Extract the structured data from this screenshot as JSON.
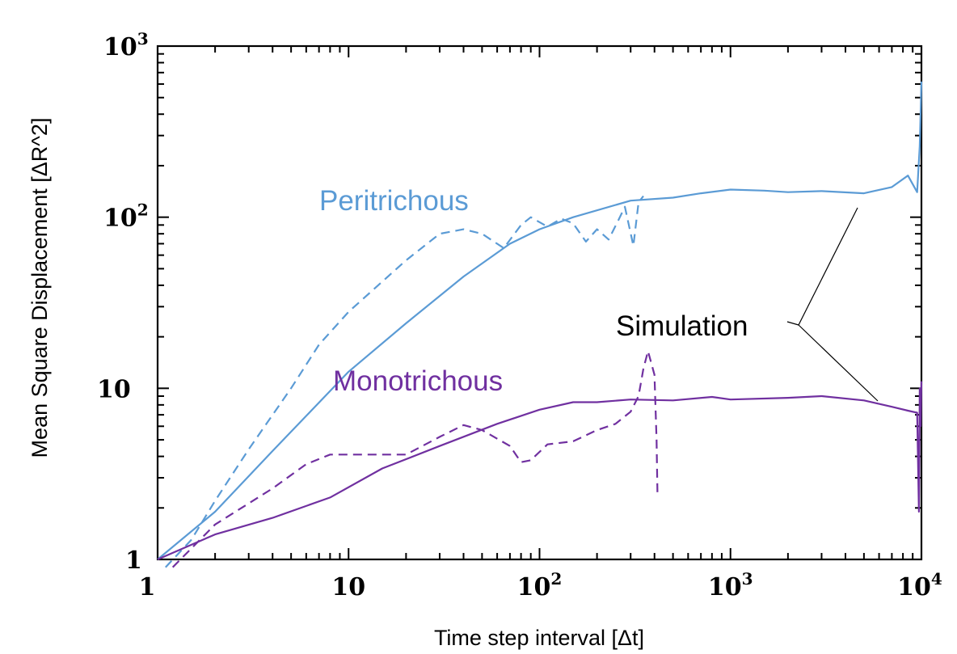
{
  "chart_data": {
    "type": "line",
    "xscale": "log",
    "yscale": "log",
    "xlim": [
      1,
      10000
    ],
    "ylim": [
      1,
      1000
    ],
    "xlabel": "Time step interval [Δt]",
    "ylabel": "Mean  Square  Displacement  [ΔR^2]",
    "grid": false,
    "x_ticks": [
      {
        "value": 1,
        "base": "1",
        "exp": ""
      },
      {
        "value": 10,
        "base": "10",
        "exp": ""
      },
      {
        "value": 100,
        "base": "10",
        "exp": "2"
      },
      {
        "value": 1000,
        "base": "10",
        "exp": "3"
      },
      {
        "value": 10000,
        "base": "10",
        "exp": "4"
      }
    ],
    "y_ticks": [
      {
        "value": 1,
        "base": "1",
        "exp": ""
      },
      {
        "value": 10,
        "base": "10",
        "exp": ""
      },
      {
        "value": 100,
        "base": "10",
        "exp": "2"
      },
      {
        "value": 1000,
        "base": "10",
        "exp": "3"
      }
    ],
    "series": [
      {
        "name": "Peritrichous",
        "color": "#5b9bd5",
        "style": "solid",
        "points": [
          [
            1,
            1
          ],
          [
            2,
            1.9
          ],
          [
            4,
            4.3
          ],
          [
            10,
            12.5
          ],
          [
            20,
            24
          ],
          [
            40,
            45
          ],
          [
            70,
            70
          ],
          [
            100,
            85
          ],
          [
            150,
            100
          ],
          [
            300,
            125
          ],
          [
            500,
            130
          ],
          [
            700,
            138
          ],
          [
            1000,
            145
          ],
          [
            1500,
            143
          ],
          [
            2000,
            140
          ],
          [
            3000,
            142
          ],
          [
            5000,
            138
          ],
          [
            7000,
            150
          ],
          [
            8500,
            175
          ],
          [
            9500,
            140
          ],
          [
            9800,
            260
          ],
          [
            10000,
            620
          ]
        ]
      },
      {
        "name": "Peritrichous",
        "color": "#5b9bd5",
        "style": "dashed",
        "points": [
          [
            1.1,
            0.9
          ],
          [
            1.5,
            1.3
          ],
          [
            2,
            2.2
          ],
          [
            3,
            4.4
          ],
          [
            5,
            10
          ],
          [
            7,
            18
          ],
          [
            10,
            28
          ],
          [
            15,
            42
          ],
          [
            20,
            56
          ],
          [
            30,
            80
          ],
          [
            40,
            85
          ],
          [
            50,
            80
          ],
          [
            65,
            66
          ],
          [
            80,
            90
          ],
          [
            90,
            100
          ],
          [
            110,
            88
          ],
          [
            130,
            98
          ],
          [
            150,
            92
          ],
          [
            175,
            72
          ],
          [
            200,
            85
          ],
          [
            230,
            74
          ],
          [
            260,
            97
          ],
          [
            280,
            115
          ],
          [
            310,
            68
          ],
          [
            330,
            122
          ],
          [
            350,
            133
          ]
        ]
      },
      {
        "name": "Monotrichous",
        "color": "#7030a0",
        "style": "solid",
        "points": [
          [
            1,
            1
          ],
          [
            2,
            1.4
          ],
          [
            4,
            1.75
          ],
          [
            8,
            2.3
          ],
          [
            15,
            3.4
          ],
          [
            30,
            4.6
          ],
          [
            60,
            6.2
          ],
          [
            100,
            7.5
          ],
          [
            150,
            8.3
          ],
          [
            200,
            8.3
          ],
          [
            300,
            8.6
          ],
          [
            500,
            8.5
          ],
          [
            800,
            8.9
          ],
          [
            1000,
            8.6
          ],
          [
            2000,
            8.8
          ],
          [
            3000,
            9.0
          ],
          [
            5000,
            8.5
          ],
          [
            7000,
            7.8
          ],
          [
            8500,
            7.4
          ],
          [
            9500,
            7.2
          ],
          [
            9700,
            1.9
          ],
          [
            9800,
            10
          ],
          [
            9900,
            6
          ],
          [
            10000,
            11
          ]
        ]
      },
      {
        "name": "Monotrichous",
        "color": "#7030a0",
        "style": "dashed",
        "points": [
          [
            1.2,
            0.9
          ],
          [
            2,
            1.6
          ],
          [
            4,
            2.6
          ],
          [
            6,
            3.6
          ],
          [
            8,
            4.1
          ],
          [
            15,
            4.1
          ],
          [
            20,
            4.1
          ],
          [
            30,
            5.2
          ],
          [
            40,
            6.1
          ],
          [
            50,
            5.7
          ],
          [
            70,
            4.6
          ],
          [
            80,
            3.7
          ],
          [
            90,
            3.8
          ],
          [
            110,
            4.7
          ],
          [
            150,
            4.9
          ],
          [
            200,
            5.7
          ],
          [
            250,
            6.2
          ],
          [
            300,
            7.3
          ],
          [
            330,
            9
          ],
          [
            350,
            13
          ],
          [
            370,
            16.5
          ],
          [
            400,
            12
          ],
          [
            410,
            5
          ],
          [
            415,
            2.3
          ]
        ]
      }
    ],
    "annotations": [
      {
        "text": "Peritrichous",
        "color": "#5b9bd5"
      },
      {
        "text": "Monotrichous",
        "color": "#7030a0"
      },
      {
        "text": "Simulation",
        "color": "#000000"
      }
    ]
  }
}
